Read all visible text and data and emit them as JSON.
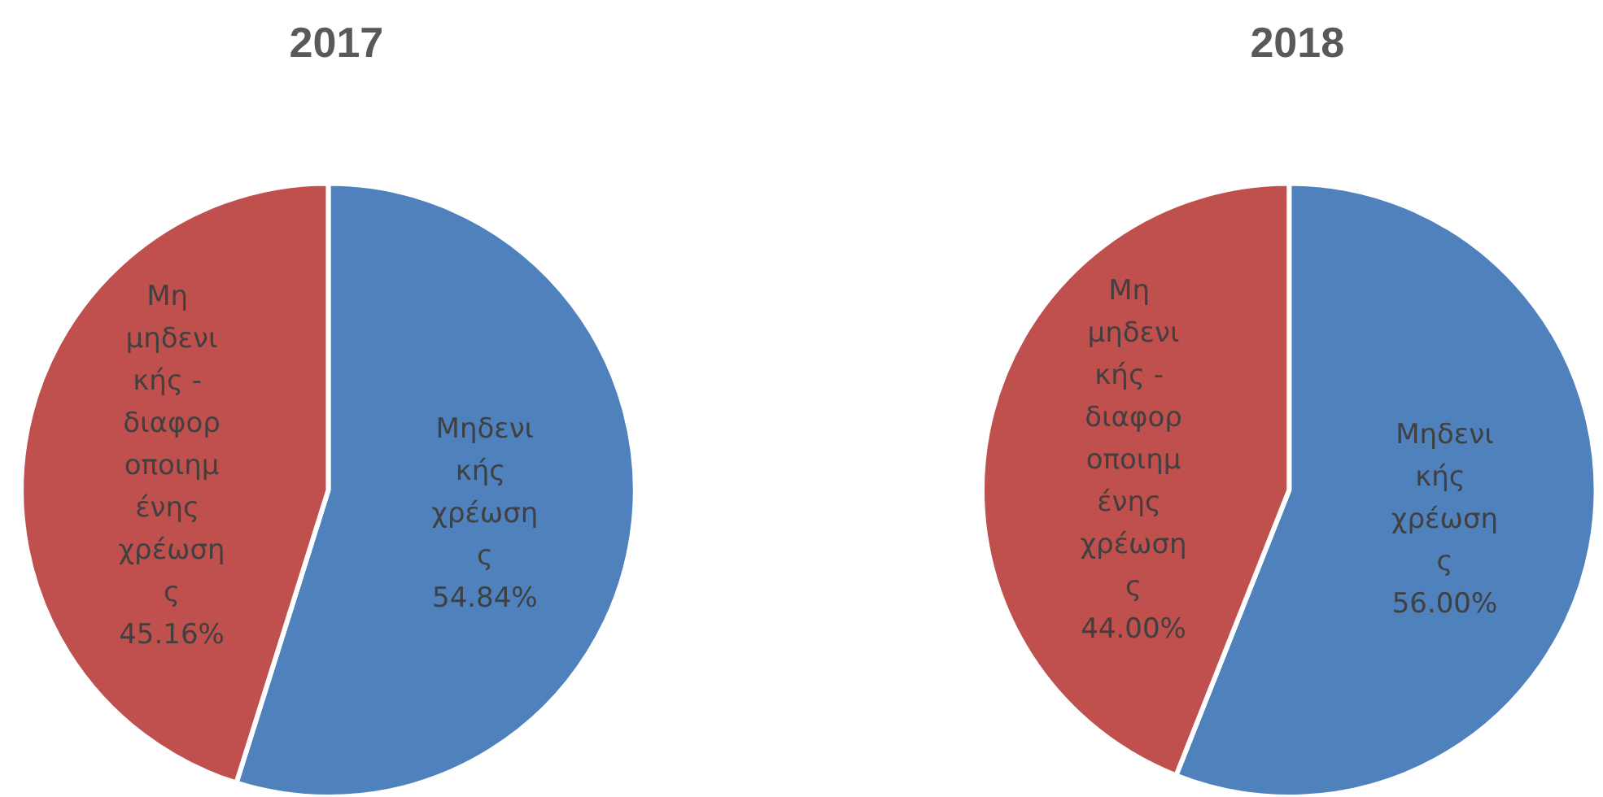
{
  "chart_data": [
    {
      "type": "pie",
      "title": "2017",
      "categories": [
        "Μηδενικής χρέωσης",
        "Μη μηδενικής - διαφοροποιημένης χρέωσης"
      ],
      "values": [
        54.84,
        45.16
      ],
      "value_labels": [
        "54.84%",
        "45.16%"
      ],
      "colors": [
        "#4f81bd",
        "#c0504d"
      ]
    },
    {
      "type": "pie",
      "title": "2018",
      "categories": [
        "Μηδενικής χρέωσης",
        "Μη μηδενικής - διαφοροποιημένης χρέωσης"
      ],
      "values": [
        56.0,
        44.0
      ],
      "value_labels": [
        "56.00%",
        "44.00%"
      ],
      "colors": [
        "#4f81bd",
        "#c0504d"
      ]
    }
  ]
}
